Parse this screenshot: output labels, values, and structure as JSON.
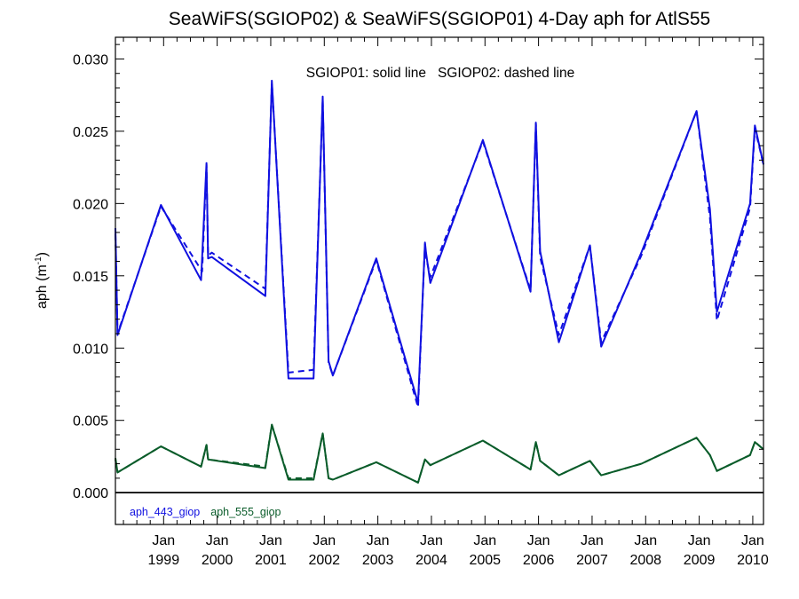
{
  "chart_data": {
    "type": "line",
    "title": "SeaWiFS(SGIOP02) & SeaWiFS(SGIOP01) 4-Day aph for AtlS55",
    "ylabel": "aph (m",
    "ylabel_sup": "-1",
    "ylabel_close": ")",
    "annotation": "SGIOP01: solid line   SGIOP02: dashed line",
    "ylim": [
      -0.0022,
      0.0315
    ],
    "xlim": [
      1998.1,
      2010.2
    ],
    "y_ticks": [
      "0.030",
      "0.025",
      "0.020",
      "0.015",
      "0.010",
      "0.005",
      "0.000"
    ],
    "y_tick_values": [
      0.03,
      0.025,
      0.02,
      0.015,
      0.01,
      0.005,
      0.0
    ],
    "x_ticks": [
      {
        "month": "Jan",
        "year": "1999",
        "x": 1999.0
      },
      {
        "month": "Jan",
        "year": "2000",
        "x": 2000.0
      },
      {
        "month": "Jan",
        "year": "2001",
        "x": 2001.0
      },
      {
        "month": "Jan",
        "year": "2002",
        "x": 2002.0
      },
      {
        "month": "Jan",
        "year": "2003",
        "x": 2003.0
      },
      {
        "month": "Jan",
        "year": "2004",
        "x": 2004.0
      },
      {
        "month": "Jan",
        "year": "2005",
        "x": 2005.0
      },
      {
        "month": "Jan",
        "year": "2006",
        "x": 2006.0
      },
      {
        "month": "Jan",
        "year": "2007",
        "x": 2007.0
      },
      {
        "month": "Jan",
        "year": "2008",
        "x": 2008.0
      },
      {
        "month": "Jan",
        "year": "2009",
        "x": 2009.0
      },
      {
        "month": "Jan",
        "year": "2010",
        "x": 2010.0
      }
    ],
    "zero_line": true,
    "legend": [
      {
        "label": "aph_443_giop",
        "color": "#1010e0"
      },
      {
        "label": "aph_555_giop",
        "color": "#0a5c2a"
      }
    ],
    "series": [
      {
        "name": "aph_443_giop",
        "color": "#1010e0",
        "style": "solid",
        "points": [
          [
            1998.1,
            0.0183
          ],
          [
            1998.14,
            0.0109
          ],
          [
            1998.95,
            0.0199
          ],
          [
            1999.7,
            0.0147
          ],
          [
            1999.8,
            0.0228
          ],
          [
            1999.83,
            0.0162
          ],
          [
            1999.9,
            0.0163
          ],
          [
            2000.9,
            0.0136
          ],
          [
            2001.02,
            0.0285
          ],
          [
            2001.33,
            0.0079
          ],
          [
            2001.8,
            0.0079
          ],
          [
            2001.97,
            0.0274
          ],
          [
            2002.08,
            0.0091
          ],
          [
            2002.16,
            0.0081
          ],
          [
            2002.97,
            0.0162
          ],
          [
            2003.75,
            0.0062
          ],
          [
            2003.88,
            0.0173
          ],
          [
            2003.9,
            0.0166
          ],
          [
            2003.98,
            0.0145
          ],
          [
            2004.96,
            0.0244
          ],
          [
            2005.85,
            0.0139
          ],
          [
            2005.95,
            0.0256
          ],
          [
            2006.03,
            0.0167
          ],
          [
            2006.38,
            0.0104
          ],
          [
            2006.96,
            0.0171
          ],
          [
            2007.17,
            0.0101
          ],
          [
            2007.92,
            0.0166
          ],
          [
            2008.95,
            0.0264
          ],
          [
            2009.2,
            0.0196
          ],
          [
            2009.33,
            0.0125
          ],
          [
            2009.95,
            0.02
          ],
          [
            2010.04,
            0.0254
          ],
          [
            2010.2,
            0.0227
          ]
        ]
      },
      {
        "name": "aph_443_giop",
        "color": "#1010e0",
        "style": "dashed",
        "points": [
          [
            1998.1,
            0.0179
          ],
          [
            1998.14,
            0.011
          ],
          [
            1998.95,
            0.0198
          ],
          [
            1999.72,
            0.0153
          ],
          [
            1999.8,
            0.0227
          ],
          [
            1999.83,
            0.0164
          ],
          [
            1999.9,
            0.0166
          ],
          [
            2000.9,
            0.0141
          ],
          [
            2001.02,
            0.0284
          ],
          [
            2001.33,
            0.0083
          ],
          [
            2001.8,
            0.0085
          ],
          [
            2001.97,
            0.0272
          ],
          [
            2002.08,
            0.009
          ],
          [
            2002.16,
            0.0081
          ],
          [
            2002.97,
            0.0161
          ],
          [
            2003.75,
            0.0059
          ],
          [
            2003.88,
            0.0172
          ],
          [
            2003.9,
            0.0163
          ],
          [
            2003.98,
            0.0149
          ],
          [
            2004.96,
            0.0243
          ],
          [
            2005.85,
            0.014
          ],
          [
            2005.95,
            0.0255
          ],
          [
            2006.03,
            0.0163
          ],
          [
            2006.38,
            0.0109
          ],
          [
            2006.96,
            0.0171
          ],
          [
            2007.17,
            0.0104
          ],
          [
            2007.92,
            0.0164
          ],
          [
            2008.95,
            0.0264
          ],
          [
            2009.2,
            0.019
          ],
          [
            2009.33,
            0.0119
          ],
          [
            2009.95,
            0.0197
          ],
          [
            2010.04,
            0.0252
          ],
          [
            2010.2,
            0.0227
          ]
        ]
      },
      {
        "name": "aph_555_giop",
        "color": "#0a5c2a",
        "style": "solid",
        "points": [
          [
            1998.1,
            0.0024
          ],
          [
            1998.14,
            0.0014
          ],
          [
            1998.95,
            0.0032
          ],
          [
            1999.7,
            0.0018
          ],
          [
            1999.8,
            0.0033
          ],
          [
            1999.83,
            0.0023
          ],
          [
            2000.9,
            0.0017
          ],
          [
            2001.02,
            0.0047
          ],
          [
            2001.33,
            0.0009
          ],
          [
            2001.8,
            0.0009
          ],
          [
            2001.97,
            0.0041
          ],
          [
            2002.08,
            0.001
          ],
          [
            2002.16,
            0.0009
          ],
          [
            2002.97,
            0.0021
          ],
          [
            2003.75,
            0.0007
          ],
          [
            2003.88,
            0.0023
          ],
          [
            2003.98,
            0.0019
          ],
          [
            2004.96,
            0.0036
          ],
          [
            2005.85,
            0.0016
          ],
          [
            2005.95,
            0.0035
          ],
          [
            2006.03,
            0.0022
          ],
          [
            2006.38,
            0.0012
          ],
          [
            2006.96,
            0.0022
          ],
          [
            2007.17,
            0.0012
          ],
          [
            2007.92,
            0.002
          ],
          [
            2008.95,
            0.0038
          ],
          [
            2009.2,
            0.0026
          ],
          [
            2009.33,
            0.0015
          ],
          [
            2009.95,
            0.0026
          ],
          [
            2010.04,
            0.0035
          ],
          [
            2010.2,
            0.003
          ]
        ]
      },
      {
        "name": "aph_555_giop",
        "color": "#0a5c2a",
        "style": "dashed",
        "points": [
          [
            1998.1,
            0.0023
          ],
          [
            1998.14,
            0.0014
          ],
          [
            1998.95,
            0.0032
          ],
          [
            1999.7,
            0.0018
          ],
          [
            1999.8,
            0.0033
          ],
          [
            1999.83,
            0.0023
          ],
          [
            2000.9,
            0.0018
          ],
          [
            2001.02,
            0.0047
          ],
          [
            2001.33,
            0.001
          ],
          [
            2001.8,
            0.001
          ],
          [
            2001.97,
            0.0041
          ],
          [
            2002.08,
            0.001
          ],
          [
            2002.16,
            0.0009
          ],
          [
            2002.97,
            0.0021
          ],
          [
            2003.75,
            0.0007
          ],
          [
            2003.88,
            0.0023
          ],
          [
            2003.98,
            0.0019
          ],
          [
            2004.96,
            0.0036
          ],
          [
            2005.85,
            0.0016
          ],
          [
            2005.95,
            0.0035
          ],
          [
            2006.03,
            0.0022
          ],
          [
            2006.38,
            0.0012
          ],
          [
            2006.96,
            0.0022
          ],
          [
            2007.17,
            0.0012
          ],
          [
            2007.92,
            0.002
          ],
          [
            2008.95,
            0.0038
          ],
          [
            2009.2,
            0.0026
          ],
          [
            2009.33,
            0.0015
          ],
          [
            2009.95,
            0.0026
          ],
          [
            2010.04,
            0.0035
          ],
          [
            2010.2,
            0.003
          ]
        ]
      }
    ]
  }
}
